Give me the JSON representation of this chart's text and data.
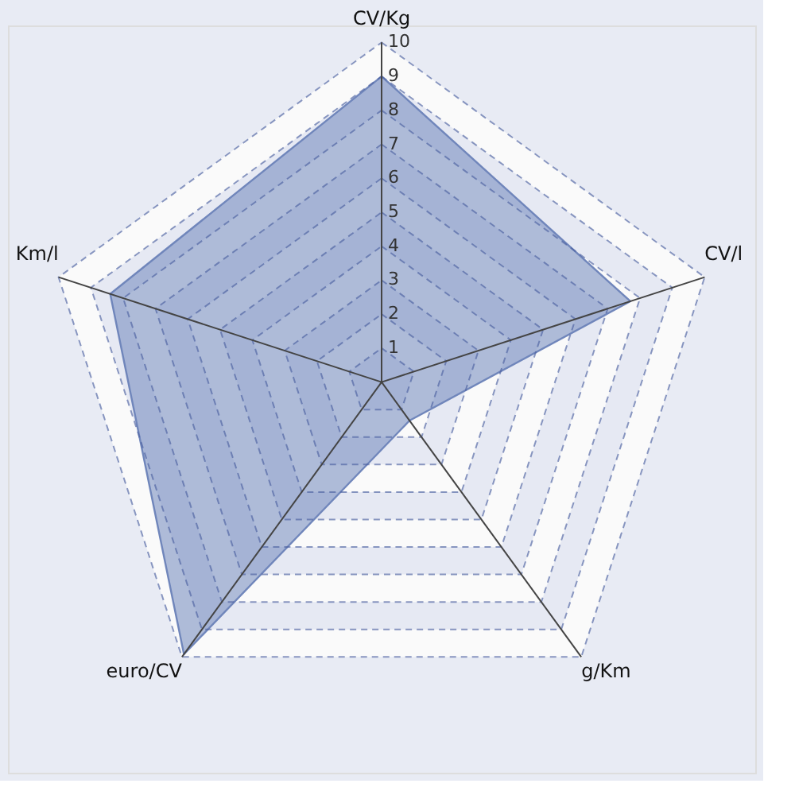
{
  "chart_data": {
    "type": "radar",
    "categories": [
      "CV/Kg",
      "CV/l",
      "g/Km",
      "euro/CV",
      "Km/l"
    ],
    "series": [
      {
        "color": "#7086bb",
        "values": [
          9.0,
          7.7,
          1.4,
          9.9,
          8.4
        ]
      }
    ],
    "ylim": [
      0,
      10
    ],
    "yticks": [
      1,
      2,
      3,
      4,
      5,
      6,
      7,
      8,
      9,
      10
    ],
    "grid": true
  }
}
